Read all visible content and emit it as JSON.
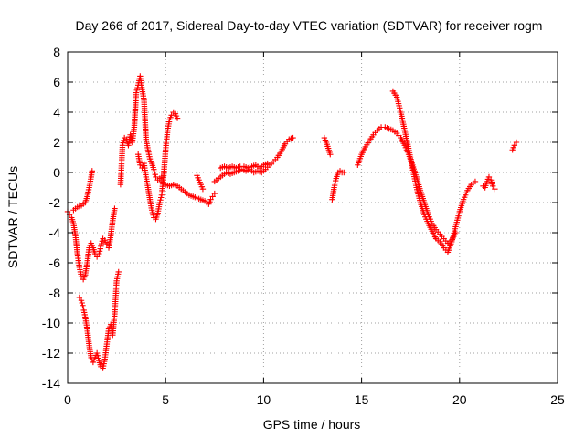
{
  "chart_data": {
    "type": "scatter",
    "title": "Day 266 of 2017, Sidereal Day-to-day VTEC variation (SDTVAR) for receiver rogm",
    "xlabel": "GPS time / hours",
    "ylabel": "SDTVAR / TECUs",
    "xlim": [
      0,
      25
    ],
    "ylim": [
      -14,
      8
    ],
    "xticks": [
      0,
      5,
      10,
      15,
      20,
      25
    ],
    "yticks": [
      -14,
      -12,
      -10,
      -8,
      -6,
      -4,
      -2,
      0,
      2,
      4,
      6,
      8
    ],
    "grid": true,
    "legend": "none",
    "marker": "plus",
    "color": "#ff0000",
    "series": [
      {
        "segments": [
          [
            [
              0.0,
              -2.6
            ],
            [
              0.1,
              -2.8
            ],
            [
              0.2,
              -3.0
            ],
            [
              0.3,
              -3.4
            ],
            [
              0.4,
              -4.2
            ],
            [
              0.5,
              -5.4
            ],
            [
              0.6,
              -6.3
            ],
            [
              0.7,
              -6.9
            ],
            [
              0.8,
              -7.1
            ],
            [
              0.9,
              -6.8
            ],
            [
              1.0,
              -6.0
            ],
            [
              1.1,
              -5.0
            ],
            [
              1.2,
              -4.7
            ],
            [
              1.3,
              -5.0
            ],
            [
              1.4,
              -5.4
            ],
            [
              1.5,
              -5.6
            ],
            [
              1.6,
              -5.4
            ],
            [
              1.7,
              -4.9
            ],
            [
              1.8,
              -4.4
            ],
            [
              1.9,
              -4.5
            ],
            [
              2.0,
              -4.8
            ],
            [
              2.1,
              -5.0
            ],
            [
              2.2,
              -4.2
            ],
            [
              2.3,
              -3.2
            ],
            [
              2.4,
              -2.4
            ]
          ],
          [
            [
              0.3,
              -2.5
            ],
            [
              0.5,
              -2.3
            ],
            [
              0.7,
              -2.2
            ],
            [
              0.9,
              -2.0
            ],
            [
              1.0,
              -1.6
            ],
            [
              1.1,
              -1.0
            ],
            [
              1.2,
              -0.3
            ],
            [
              1.25,
              0.1
            ]
          ],
          [
            [
              0.6,
              -8.3
            ],
            [
              0.7,
              -8.5
            ],
            [
              0.8,
              -9.0
            ],
            [
              0.9,
              -9.6
            ],
            [
              1.0,
              -10.4
            ],
            [
              1.1,
              -11.5
            ],
            [
              1.2,
              -12.3
            ],
            [
              1.3,
              -12.6
            ],
            [
              1.4,
              -12.3
            ],
            [
              1.5,
              -12.0
            ],
            [
              1.6,
              -12.5
            ],
            [
              1.7,
              -12.9
            ],
            [
              1.8,
              -13.0
            ],
            [
              1.9,
              -12.4
            ],
            [
              2.0,
              -11.4
            ],
            [
              2.1,
              -10.4
            ],
            [
              2.2,
              -10.1
            ],
            [
              2.3,
              -10.8
            ],
            [
              2.4,
              -9.4
            ],
            [
              2.5,
              -7.2
            ],
            [
              2.6,
              -6.6
            ]
          ],
          [
            [
              2.7,
              -0.8
            ],
            [
              2.8,
              1.8
            ],
            [
              2.9,
              2.3
            ],
            [
              3.0,
              2.2
            ],
            [
              3.1,
              1.8
            ],
            [
              3.2,
              2.5
            ],
            [
              3.3,
              2.0
            ],
            [
              3.4,
              3.0
            ],
            [
              3.5,
              5.3
            ],
            [
              3.6,
              5.8
            ],
            [
              3.7,
              6.4
            ],
            [
              3.8,
              5.5
            ],
            [
              3.9,
              4.8
            ],
            [
              4.0,
              2.2
            ],
            [
              4.1,
              1.5
            ],
            [
              4.2,
              0.9
            ],
            [
              4.3,
              0.6
            ],
            [
              4.4,
              0.2
            ],
            [
              4.5,
              -0.3
            ],
            [
              4.6,
              -0.5
            ],
            [
              4.7,
              -0.4
            ],
            [
              4.8,
              -0.3
            ]
          ],
          [
            [
              3.6,
              1.2
            ],
            [
              3.7,
              0.5
            ],
            [
              3.8,
              0.3
            ],
            [
              3.9,
              0.6
            ],
            [
              4.0,
              -0.3
            ],
            [
              4.1,
              -1.0
            ],
            [
              4.2,
              -1.8
            ],
            [
              4.3,
              -2.5
            ],
            [
              4.4,
              -3.0
            ],
            [
              4.5,
              -3.1
            ],
            [
              4.6,
              -2.7
            ],
            [
              4.7,
              -2.0
            ],
            [
              4.8,
              -1.5
            ],
            [
              4.9,
              -0.2
            ],
            [
              5.0,
              1.5
            ],
            [
              5.1,
              2.8
            ],
            [
              5.2,
              3.5
            ],
            [
              5.3,
              3.8
            ],
            [
              5.4,
              4.0
            ],
            [
              5.5,
              3.9
            ],
            [
              5.6,
              3.6
            ]
          ],
          [
            [
              4.8,
              -0.6
            ],
            [
              5.0,
              -0.8
            ],
            [
              5.2,
              -0.9
            ],
            [
              5.4,
              -0.8
            ],
            [
              5.6,
              -0.9
            ],
            [
              5.8,
              -1.1
            ],
            [
              6.0,
              -1.3
            ],
            [
              6.2,
              -1.5
            ],
            [
              6.4,
              -1.6
            ],
            [
              6.6,
              -1.7
            ],
            [
              6.8,
              -1.8
            ],
            [
              7.0,
              -1.9
            ],
            [
              7.1,
              -2.0
            ],
            [
              7.2,
              -2.1
            ],
            [
              7.3,
              -1.8
            ],
            [
              7.4,
              -1.6
            ],
            [
              7.5,
              -1.4
            ]
          ],
          [
            [
              6.6,
              -0.2
            ],
            [
              6.7,
              -0.5
            ],
            [
              6.8,
              -0.8
            ],
            [
              6.9,
              -1.1
            ]
          ],
          [
            [
              7.5,
              -0.6
            ],
            [
              7.7,
              -0.4
            ],
            [
              7.9,
              -0.2
            ],
            [
              8.1,
              0.0
            ],
            [
              8.3,
              -0.1
            ],
            [
              8.5,
              0.0
            ],
            [
              8.7,
              0.1
            ],
            [
              8.9,
              0.2
            ],
            [
              9.1,
              0.1
            ],
            [
              9.3,
              0.2
            ],
            [
              9.5,
              0.0
            ],
            [
              9.7,
              0.1
            ],
            [
              9.9,
              0.0
            ],
            [
              10.1,
              0.2
            ],
            [
              10.3,
              0.5
            ],
            [
              10.5,
              0.7
            ],
            [
              10.7,
              1.0
            ],
            [
              10.9,
              1.4
            ],
            [
              11.1,
              1.9
            ],
            [
              11.3,
              2.2
            ],
            [
              11.5,
              2.3
            ]
          ],
          [
            [
              7.8,
              0.3
            ],
            [
              8.0,
              0.4
            ],
            [
              8.2,
              0.3
            ],
            [
              8.4,
              0.4
            ],
            [
              8.6,
              0.3
            ],
            [
              8.8,
              0.4
            ],
            [
              9.0,
              0.4
            ],
            [
              9.2,
              0.3
            ],
            [
              9.4,
              0.4
            ],
            [
              9.6,
              0.5
            ],
            [
              9.8,
              0.3
            ],
            [
              10.0,
              0.5
            ],
            [
              10.2,
              0.6
            ]
          ],
          [
            [
              13.1,
              2.3
            ],
            [
              13.2,
              2.0
            ],
            [
              13.3,
              1.6
            ],
            [
              13.4,
              1.2
            ]
          ],
          [
            [
              13.5,
              -1.8
            ],
            [
              13.6,
              -1.0
            ],
            [
              13.7,
              -0.4
            ],
            [
              13.8,
              0.0
            ],
            [
              13.9,
              0.1
            ],
            [
              14.0,
              0.0
            ],
            [
              14.1,
              0.0
            ]
          ],
          [
            [
              14.8,
              0.5
            ],
            [
              15.0,
              1.2
            ],
            [
              15.2,
              1.7
            ],
            [
              15.4,
              2.1
            ],
            [
              15.6,
              2.5
            ],
            [
              15.8,
              2.8
            ],
            [
              16.0,
              3.0
            ],
            [
              16.2,
              3.0
            ],
            [
              16.4,
              2.9
            ],
            [
              16.6,
              2.8
            ],
            [
              16.8,
              2.6
            ],
            [
              17.0,
              2.3
            ],
            [
              17.2,
              1.8
            ],
            [
              17.4,
              1.2
            ],
            [
              17.6,
              0.5
            ],
            [
              17.8,
              -0.3
            ],
            [
              18.0,
              -1.2
            ],
            [
              18.2,
              -2.0
            ],
            [
              18.4,
              -2.8
            ],
            [
              18.6,
              -3.4
            ],
            [
              18.8,
              -3.8
            ],
            [
              19.0,
              -4.1
            ],
            [
              19.2,
              -4.4
            ],
            [
              19.4,
              -4.7
            ],
            [
              19.6,
              -4.5
            ],
            [
              19.8,
              -4.0
            ]
          ],
          [
            [
              16.6,
              5.4
            ],
            [
              16.8,
              5.0
            ],
            [
              17.0,
              4.0
            ],
            [
              17.2,
              2.8
            ],
            [
              17.4,
              1.6
            ],
            [
              17.6,
              0.3
            ],
            [
              17.8,
              -1.0
            ],
            [
              18.0,
              -2.0
            ],
            [
              18.2,
              -2.8
            ],
            [
              18.4,
              -3.4
            ],
            [
              18.6,
              -3.9
            ],
            [
              18.8,
              -4.4
            ],
            [
              19.0,
              -4.6
            ],
            [
              19.2,
              -5.0
            ],
            [
              19.4,
              -5.3
            ],
            [
              19.6,
              -4.6
            ],
            [
              19.8,
              -3.6
            ],
            [
              20.0,
              -2.6
            ],
            [
              20.2,
              -1.8
            ],
            [
              20.4,
              -1.2
            ],
            [
              20.6,
              -0.8
            ],
            [
              20.8,
              -0.6
            ]
          ],
          [
            [
              21.2,
              -0.9
            ],
            [
              21.3,
              -1.0
            ],
            [
              21.4,
              -0.6
            ],
            [
              21.5,
              -0.3
            ],
            [
              21.6,
              -0.5
            ],
            [
              21.7,
              -0.9
            ],
            [
              21.8,
              -1.1
            ]
          ],
          [
            [
              22.7,
              1.5
            ],
            [
              22.8,
              1.8
            ],
            [
              22.9,
              2.0
            ]
          ]
        ]
      }
    ]
  }
}
